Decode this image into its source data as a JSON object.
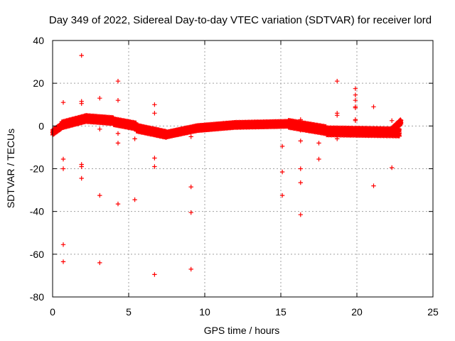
{
  "chart_data": {
    "type": "scatter",
    "title": "Day 349 of 2022, Sidereal Day-to-day VTEC variation (SDTVAR) for receiver lord",
    "xlabel": "GPS time / hours",
    "ylabel": "SDTVAR / TECUs",
    "xlim": [
      0,
      25
    ],
    "ylim": [
      -80,
      40
    ],
    "xticks": [
      0,
      5,
      10,
      15,
      20,
      25
    ],
    "yticks": [
      -80,
      -60,
      -40,
      -20,
      0,
      20,
      40
    ],
    "grid": true,
    "marker": "plus",
    "color": "#ff0000",
    "band_segments": [
      {
        "x0": 0.0,
        "x1": 0.6,
        "y0": -3.0,
        "y1": 0.0,
        "spread": 2.5
      },
      {
        "x0": 0.6,
        "x1": 2.2,
        "y0": 0.5,
        "y1": 3.5,
        "spread": 3.0
      },
      {
        "x0": 2.2,
        "x1": 4.0,
        "y0": 3.5,
        "y1": 2.5,
        "spread": 3.0
      },
      {
        "x0": 4.0,
        "x1": 5.5,
        "y0": 2.0,
        "y1": 0.0,
        "spread": 3.0
      },
      {
        "x0": 5.5,
        "x1": 7.5,
        "y0": -1.0,
        "y1": -4.0,
        "spread": 3.0
      },
      {
        "x0": 7.5,
        "x1": 9.5,
        "y0": -4.0,
        "y1": -1.0,
        "spread": 2.5
      },
      {
        "x0": 9.5,
        "x1": 12.0,
        "y0": -1.0,
        "y1": 0.5,
        "spread": 2.5
      },
      {
        "x0": 12.0,
        "x1": 15.5,
        "y0": 0.5,
        "y1": 1.0,
        "spread": 2.5
      },
      {
        "x0": 15.5,
        "x1": 18.0,
        "y0": 1.0,
        "y1": -2.0,
        "spread": 3.5
      },
      {
        "x0": 18.0,
        "x1": 22.8,
        "y0": -2.5,
        "y1": -3.0,
        "spread": 3.5
      },
      {
        "x0": 22.3,
        "x1": 22.9,
        "y0": -2.0,
        "y1": 2.0,
        "spread": 2.5
      }
    ],
    "outliers": [
      [
        0.7,
        11
      ],
      [
        0.7,
        -15.5
      ],
      [
        0.7,
        -20
      ],
      [
        0.7,
        -55.5
      ],
      [
        0.7,
        -63.5
      ],
      [
        1.9,
        33
      ],
      [
        1.9,
        11.5
      ],
      [
        1.9,
        10.5
      ],
      [
        1.9,
        -18
      ],
      [
        1.9,
        -19
      ],
      [
        1.9,
        -24.5
      ],
      [
        3.1,
        13
      ],
      [
        3.1,
        -1.5
      ],
      [
        3.1,
        -32.5
      ],
      [
        3.1,
        -64
      ],
      [
        4.3,
        21
      ],
      [
        4.3,
        12
      ],
      [
        4.3,
        -3.5
      ],
      [
        4.3,
        -8
      ],
      [
        4.3,
        -36.5
      ],
      [
        5.4,
        -6
      ],
      [
        5.4,
        -34.5
      ],
      [
        6.7,
        10
      ],
      [
        6.7,
        6
      ],
      [
        6.7,
        -15
      ],
      [
        6.7,
        -19
      ],
      [
        6.7,
        -69.5
      ],
      [
        9.1,
        -5
      ],
      [
        9.1,
        -28.5
      ],
      [
        9.1,
        -40.5
      ],
      [
        9.1,
        -67
      ],
      [
        15.1,
        -9.5
      ],
      [
        15.1,
        -21.5
      ],
      [
        15.1,
        -32.5
      ],
      [
        16.3,
        3
      ],
      [
        16.3,
        -2
      ],
      [
        16.3,
        -7
      ],
      [
        16.3,
        -20
      ],
      [
        16.3,
        -26.5
      ],
      [
        16.3,
        -41.5
      ],
      [
        17.5,
        -8
      ],
      [
        17.5,
        -15.5
      ],
      [
        18.7,
        21
      ],
      [
        18.7,
        6
      ],
      [
        18.7,
        5
      ],
      [
        18.7,
        -6
      ],
      [
        19.9,
        17.5
      ],
      [
        19.9,
        14.5
      ],
      [
        19.9,
        12
      ],
      [
        19.9,
        9
      ],
      [
        19.9,
        8.5
      ],
      [
        19.9,
        3
      ],
      [
        19.9,
        2.5
      ],
      [
        21.1,
        9
      ],
      [
        21.1,
        -28
      ],
      [
        22.3,
        2.5
      ],
      [
        22.3,
        -19.5
      ]
    ]
  }
}
